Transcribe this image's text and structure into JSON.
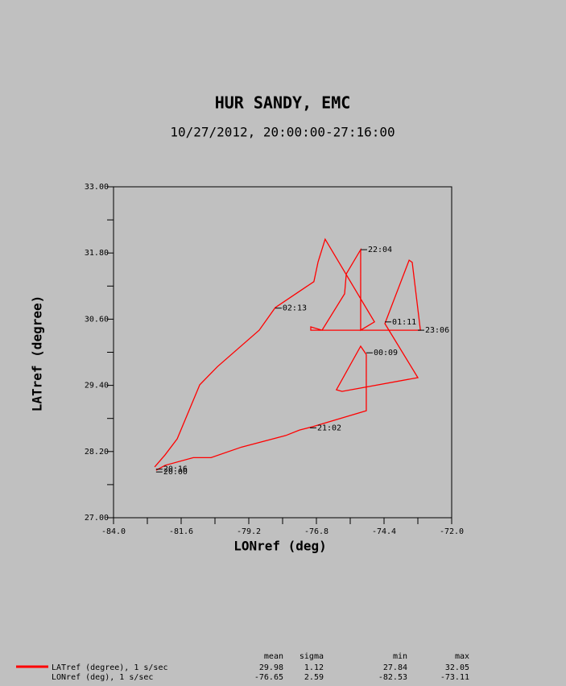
{
  "chart_data": {
    "type": "line",
    "title": "HUR SANDY, EMC",
    "subtitle": "10/27/2012, 20:00:00-27:16:00",
    "xlabel": "LONref (deg)",
    "ylabel": "LATref (degree)",
    "xlim": [
      -84,
      -72
    ],
    "ylim": [
      27,
      33
    ],
    "xticks": [
      {
        "value": -84,
        "label": "-84.0"
      },
      {
        "value": -81.6,
        "label": "-81.6"
      },
      {
        "value": -79.2,
        "label": "-79.2"
      },
      {
        "value": -76.8,
        "label": "-76.8"
      },
      {
        "value": -74.4,
        "label": "-74.4"
      },
      {
        "value": -72,
        "label": "-72.0"
      }
    ],
    "yticks": [
      {
        "value": 27,
        "label": "27.00"
      },
      {
        "value": 28.2,
        "label": "28.20"
      },
      {
        "value": 29.4,
        "label": "29.40"
      },
      {
        "value": 30.6,
        "label": "30.60"
      },
      {
        "value": 31.8,
        "label": "31.80"
      },
      {
        "value": 33,
        "label": "33.00"
      }
    ],
    "series": [
      {
        "name": "LATref (degree), 1 s/sec",
        "color": "#ff0000",
        "x": [
          -82.49,
          -82.17,
          -81.17,
          -80.54,
          -79.46,
          -77.89,
          -77.4,
          -76.94,
          -75.03,
          -75.03,
          -75.23,
          -76.09,
          -75.89,
          -73.2,
          -74.37,
          -73.51,
          -73.4,
          -73.11,
          -77.0,
          -77.0,
          -76.6,
          -75.8,
          -75.74,
          -75.23,
          -75.23,
          -75.23,
          -74.74,
          -76.49,
          -76.74,
          -76.89,
          -78.26,
          -78.83,
          -80.31,
          -80.94,
          -81.74,
          -82.17,
          -82.54
        ],
        "y": [
          27.86,
          27.95,
          28.09,
          28.09,
          28.28,
          28.49,
          28.59,
          28.65,
          28.94,
          29.96,
          30.11,
          29.32,
          29.29,
          29.54,
          30.52,
          31.67,
          31.63,
          30.4,
          30.4,
          30.46,
          30.4,
          31.06,
          31.42,
          31.86,
          30.99,
          30.4,
          30.55,
          32.05,
          31.64,
          31.28,
          30.81,
          30.4,
          29.74,
          29.41,
          28.43,
          28.14,
          27.92
        ]
      }
    ],
    "annotations": [
      {
        "text": "22:04",
        "x": -75.23,
        "y": 31.86
      },
      {
        "text": "01:11",
        "x": -74.37,
        "y": 30.55
      },
      {
        "text": "23:06",
        "x": -73.2,
        "y": 30.4
      },
      {
        "text": "00:09",
        "x": -75.03,
        "y": 29.99
      },
      {
        "text": "02:13",
        "x": -78.26,
        "y": 30.8
      },
      {
        "text": "21:02",
        "x": -77.03,
        "y": 28.63
      },
      {
        "text": "20:16",
        "x": -82.49,
        "y": 27.88
      },
      {
        "text": "20:00",
        "x": -82.49,
        "y": 27.83
      }
    ],
    "stats": {
      "columns": [
        "mean",
        "sigma",
        "min",
        "max"
      ],
      "rows": [
        {
          "name": "LATref (degree), 1 s/sec",
          "values": [
            29.98,
            1.12,
            27.84,
            32.05
          ]
        },
        {
          "name": "LONref (deg), 1 s/sec",
          "values": [
            -76.65,
            2.59,
            -82.53,
            -73.11
          ]
        }
      ]
    }
  }
}
